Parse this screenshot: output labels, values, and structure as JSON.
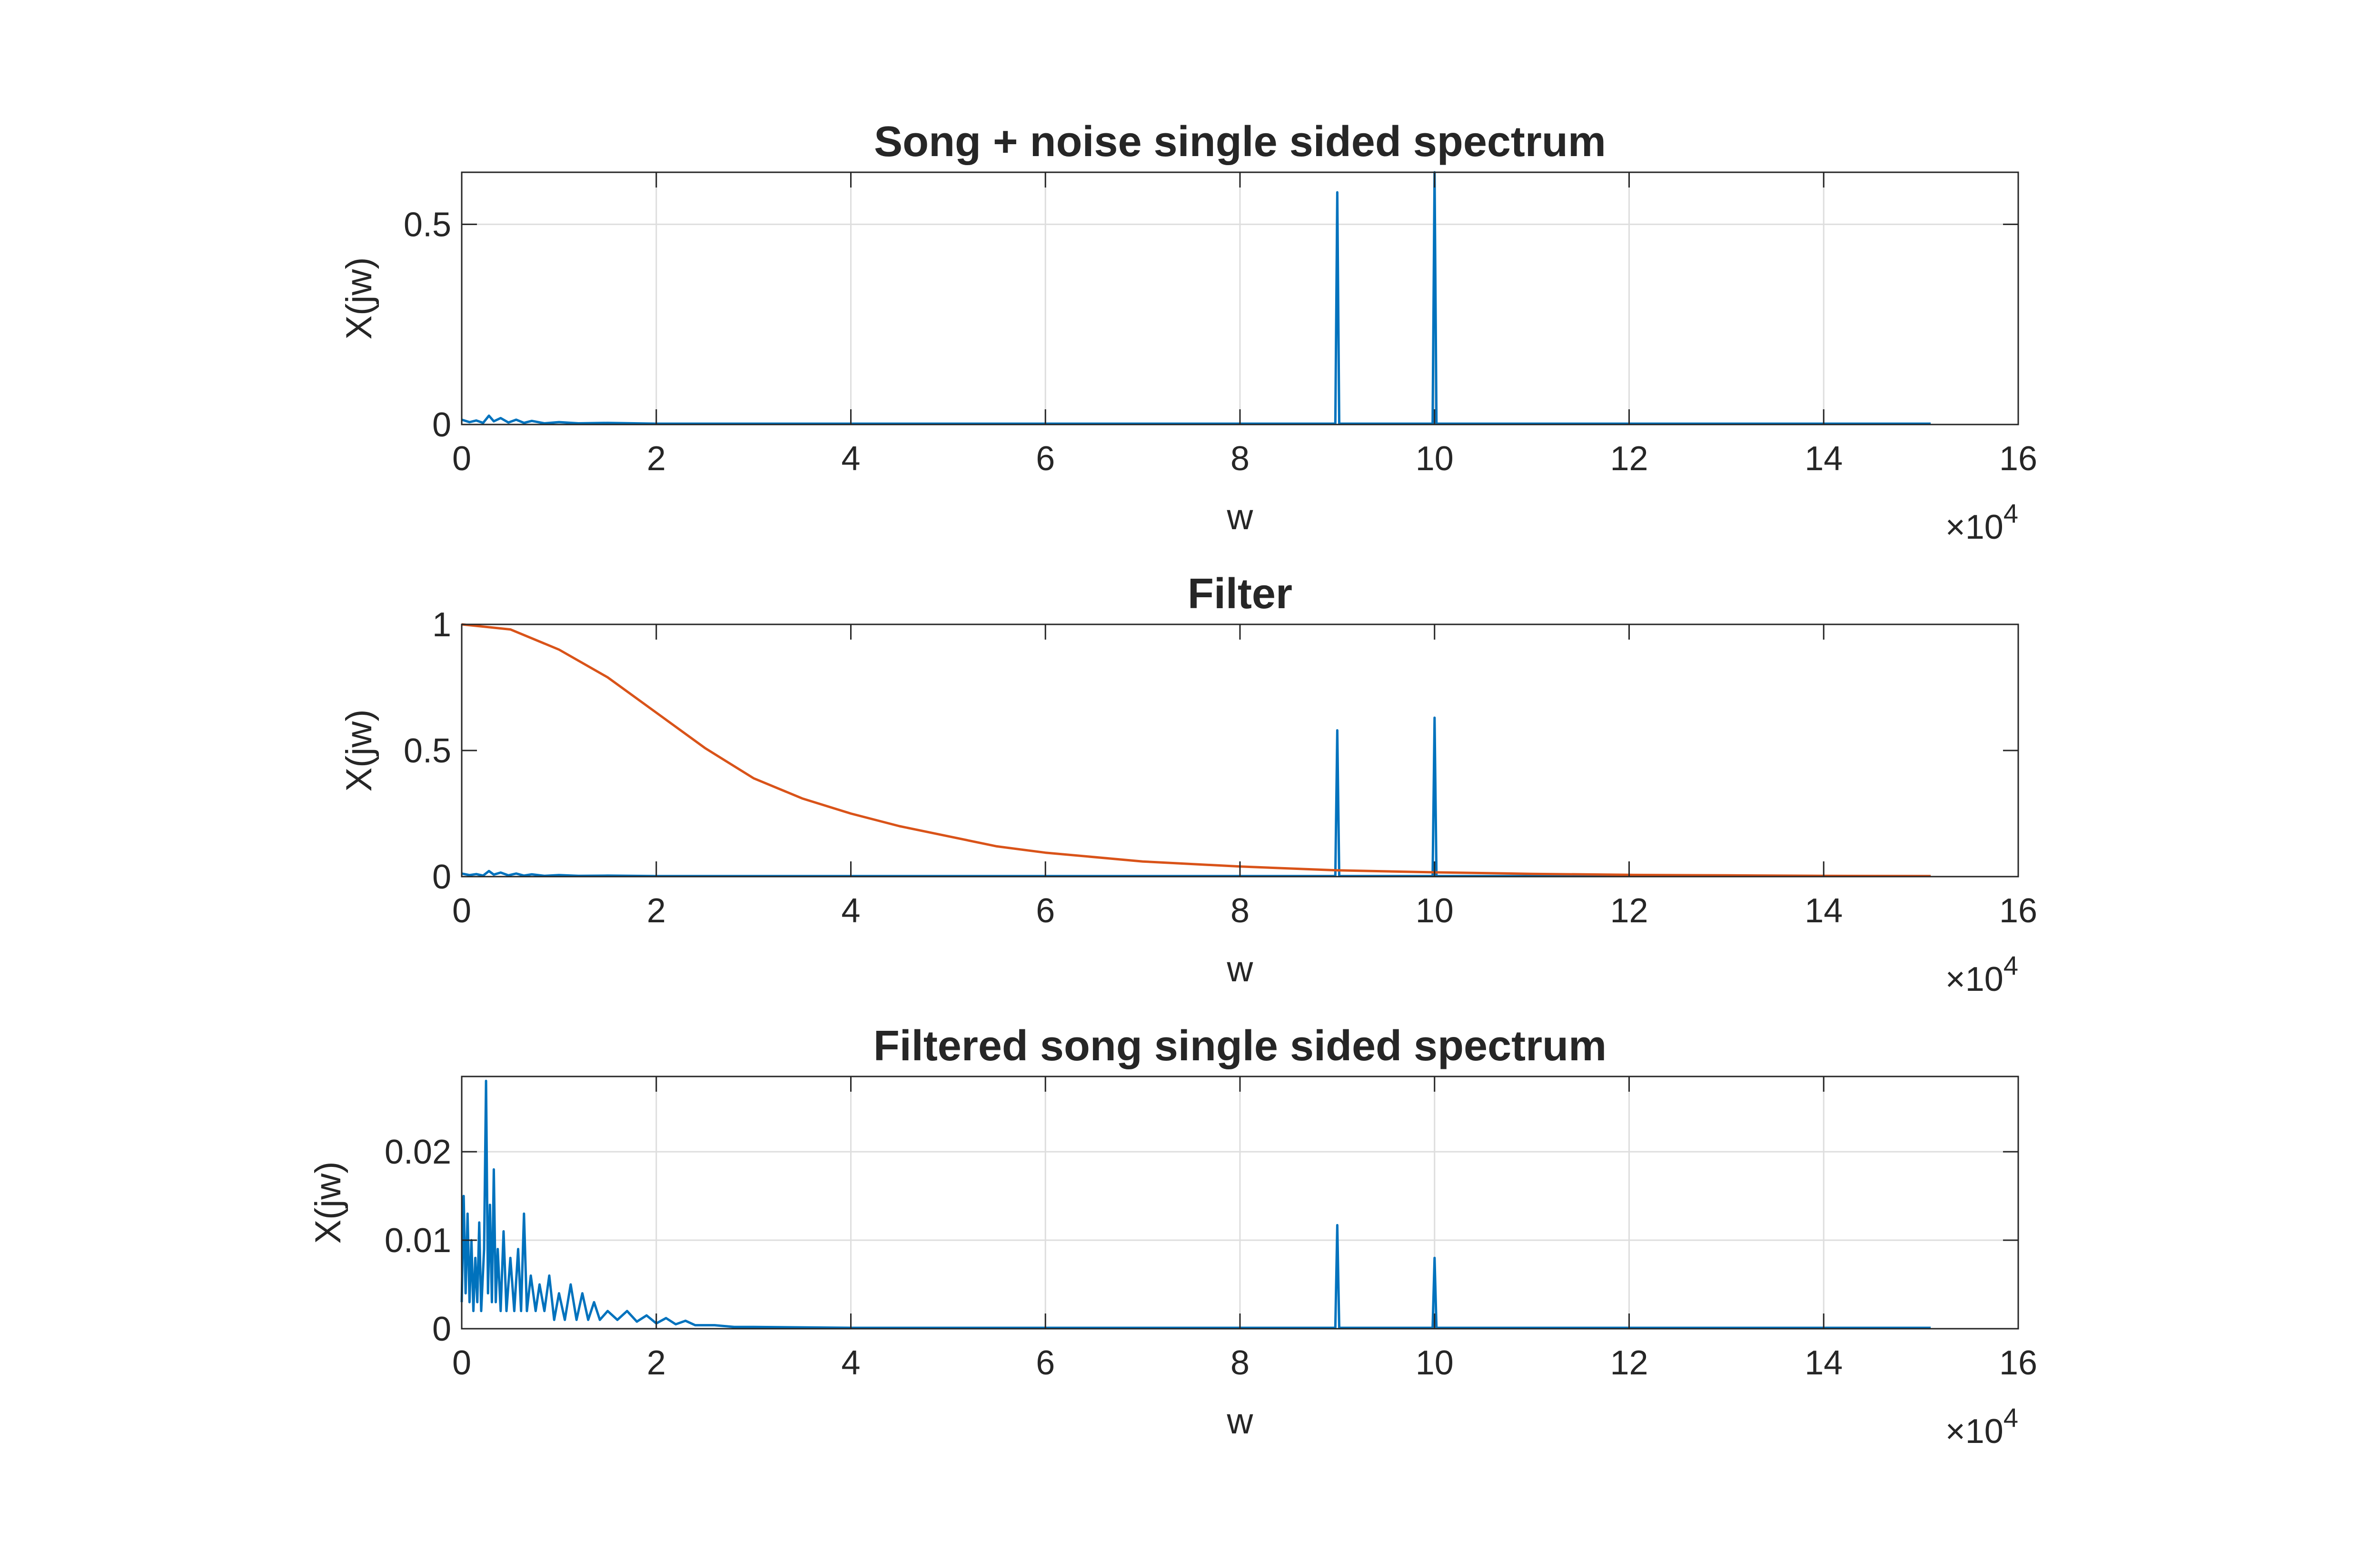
{
  "chart_data": [
    {
      "type": "line",
      "title": "Song + noise single sided spectrum",
      "xlabel": "w",
      "ylabel": "X(jw)",
      "xlim": [
        0,
        160000
      ],
      "ylim": [
        0,
        0.63
      ],
      "xticks": [
        0,
        20000,
        40000,
        60000,
        80000,
        100000,
        120000,
        140000,
        160000
      ],
      "xtick_labels": [
        "0",
        "2",
        "4",
        "6",
        "8",
        "10",
        "12",
        "14",
        "16"
      ],
      "x_exponent": {
        "base": "10",
        "power": "4"
      },
      "yticks": [
        0,
        0.5
      ],
      "ytick_labels": [
        "0",
        "0.5"
      ],
      "grid": true,
      "series": [
        {
          "color": "#0072BD",
          "points": [
            [
              0,
              0.012
            ],
            [
              800,
              0.006
            ],
            [
              1500,
              0.01
            ],
            [
              2200,
              0.004
            ],
            [
              2800,
              0.022
            ],
            [
              3300,
              0.008
            ],
            [
              4000,
              0.016
            ],
            [
              4800,
              0.005
            ],
            [
              5600,
              0.012
            ],
            [
              6400,
              0.004
            ],
            [
              7200,
              0.009
            ],
            [
              8500,
              0.003
            ],
            [
              10000,
              0.006
            ],
            [
              12000,
              0.003
            ],
            [
              15000,
              0.004
            ],
            [
              20000,
              0.002
            ],
            [
              30000,
              0.002
            ],
            [
              50000,
              0.002
            ],
            [
              70000,
              0.002
            ],
            [
              89800,
              0.002
            ],
            [
              90000,
              0.58
            ],
            [
              90200,
              0.002
            ],
            [
              99800,
              0.002
            ],
            [
              100000,
              0.63
            ],
            [
              100200,
              0.002
            ],
            [
              120000,
              0.002
            ],
            [
              140000,
              0.002
            ],
            [
              151000,
              0.002
            ]
          ]
        }
      ]
    },
    {
      "type": "line",
      "title": "Filter",
      "xlabel": "w",
      "ylabel": "X(jw)",
      "xlim": [
        0,
        160000
      ],
      "ylim": [
        0,
        1
      ],
      "xticks": [
        0,
        20000,
        40000,
        60000,
        80000,
        100000,
        120000,
        140000,
        160000
      ],
      "xtick_labels": [
        "0",
        "2",
        "4",
        "6",
        "8",
        "10",
        "12",
        "14",
        "16"
      ],
      "x_exponent": {
        "base": "10",
        "power": "4"
      },
      "yticks": [
        0,
        0.5,
        1
      ],
      "ytick_labels": [
        "0",
        "0.5",
        "1"
      ],
      "grid": false,
      "series": [
        {
          "color": "#0072BD",
          "points": [
            [
              0,
              0.012
            ],
            [
              800,
              0.006
            ],
            [
              1500,
              0.01
            ],
            [
              2200,
              0.004
            ],
            [
              2800,
              0.022
            ],
            [
              3300,
              0.008
            ],
            [
              4000,
              0.016
            ],
            [
              4800,
              0.005
            ],
            [
              5600,
              0.012
            ],
            [
              6400,
              0.004
            ],
            [
              7200,
              0.009
            ],
            [
              8500,
              0.003
            ],
            [
              10000,
              0.006
            ],
            [
              12000,
              0.003
            ],
            [
              15000,
              0.004
            ],
            [
              20000,
              0.002
            ],
            [
              30000,
              0.002
            ],
            [
              50000,
              0.002
            ],
            [
              70000,
              0.002
            ],
            [
              89800,
              0.002
            ],
            [
              90000,
              0.58
            ],
            [
              90200,
              0.002
            ],
            [
              99800,
              0.002
            ],
            [
              100000,
              0.63
            ],
            [
              100200,
              0.002
            ],
            [
              120000,
              0.002
            ],
            [
              140000,
              0.002
            ],
            [
              151000,
              0.002
            ]
          ]
        },
        {
          "color": "#D95319",
          "points": [
            [
              0,
              1.0
            ],
            [
              5000,
              0.98
            ],
            [
              10000,
              0.9
            ],
            [
              15000,
              0.79
            ],
            [
              20000,
              0.65
            ],
            [
              25000,
              0.51
            ],
            [
              30000,
              0.39
            ],
            [
              35000,
              0.31
            ],
            [
              40000,
              0.25
            ],
            [
              45000,
              0.2
            ],
            [
              50000,
              0.16
            ],
            [
              55000,
              0.12
            ],
            [
              60000,
              0.095
            ],
            [
              70000,
              0.06
            ],
            [
              80000,
              0.04
            ],
            [
              90000,
              0.025
            ],
            [
              100000,
              0.017
            ],
            [
              110000,
              0.011
            ],
            [
              120000,
              0.007
            ],
            [
              130000,
              0.005
            ],
            [
              140000,
              0.003
            ],
            [
              151000,
              0.002
            ]
          ]
        }
      ]
    },
    {
      "type": "line",
      "title": "Filtered song single sided spectrum",
      "xlabel": "w",
      "ylabel": "X(jw)",
      "xlim": [
        0,
        160000
      ],
      "ylim": [
        0,
        0.0285
      ],
      "xticks": [
        0,
        20000,
        40000,
        60000,
        80000,
        100000,
        120000,
        140000,
        160000
      ],
      "xtick_labels": [
        "0",
        "2",
        "4",
        "6",
        "8",
        "10",
        "12",
        "14",
        "16"
      ],
      "x_exponent": {
        "base": "10",
        "power": "4"
      },
      "yticks": [
        0,
        0.01,
        0.02
      ],
      "ytick_labels": [
        "0",
        "0.01",
        "0.02"
      ],
      "grid": true,
      "series": [
        {
          "color": "#0072BD",
          "points": [
            [
              0,
              0.003
            ],
            [
              200,
              0.015
            ],
            [
              400,
              0.004
            ],
            [
              600,
              0.013
            ],
            [
              800,
              0.003
            ],
            [
              1000,
              0.01
            ],
            [
              1200,
              0.002
            ],
            [
              1400,
              0.008
            ],
            [
              1600,
              0.003
            ],
            [
              1800,
              0.012
            ],
            [
              2000,
              0.002
            ],
            [
              2300,
              0.009
            ],
            [
              2500,
              0.028
            ],
            [
              2700,
              0.004
            ],
            [
              2900,
              0.014
            ],
            [
              3100,
              0.003
            ],
            [
              3300,
              0.018
            ],
            [
              3500,
              0.003
            ],
            [
              3700,
              0.009
            ],
            [
              4000,
              0.002
            ],
            [
              4300,
              0.011
            ],
            [
              4600,
              0.002
            ],
            [
              5000,
              0.008
            ],
            [
              5400,
              0.002
            ],
            [
              5800,
              0.009
            ],
            [
              6100,
              0.002
            ],
            [
              6400,
              0.013
            ],
            [
              6700,
              0.002
            ],
            [
              7100,
              0.006
            ],
            [
              7600,
              0.002
            ],
            [
              8000,
              0.005
            ],
            [
              8500,
              0.002
            ],
            [
              9000,
              0.006
            ],
            [
              9500,
              0.001
            ],
            [
              10000,
              0.004
            ],
            [
              10600,
              0.001
            ],
            [
              11200,
              0.005
            ],
            [
              11800,
              0.001
            ],
            [
              12400,
              0.004
            ],
            [
              13000,
              0.001
            ],
            [
              13600,
              0.003
            ],
            [
              14200,
              0.001
            ],
            [
              15000,
              0.002
            ],
            [
              16000,
              0.001
            ],
            [
              17000,
              0.002
            ],
            [
              18000,
              0.0008
            ],
            [
              19000,
              0.0015
            ],
            [
              20000,
              0.0006
            ],
            [
              21000,
              0.0012
            ],
            [
              22000,
              0.0005
            ],
            [
              23000,
              0.0009
            ],
            [
              24000,
              0.0004
            ],
            [
              26000,
              0.0004
            ],
            [
              28000,
              0.0002
            ],
            [
              30000,
              0.0002
            ],
            [
              40000,
              0.0001
            ],
            [
              60000,
              0.0001
            ],
            [
              89800,
              0.0001
            ],
            [
              90000,
              0.0117
            ],
            [
              90200,
              0.0001
            ],
            [
              99800,
              0.0001
            ],
            [
              100000,
              0.008
            ],
            [
              100200,
              0.0001
            ],
            [
              120000,
              0.0001
            ],
            [
              151000,
              0.0001
            ]
          ]
        }
      ]
    }
  ]
}
